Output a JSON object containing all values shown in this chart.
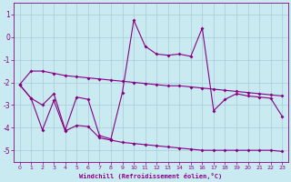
{
  "xlabel": "Windchill (Refroidissement éolien,°C)",
  "background_color": "#c8eaf0",
  "grid_color": "#a8ccd8",
  "line_color": "#880088",
  "xlim": [
    -0.5,
    23.5
  ],
  "ylim": [
    -5.5,
    1.5
  ],
  "xticks": [
    0,
    1,
    2,
    3,
    4,
    5,
    6,
    7,
    8,
    9,
    10,
    11,
    12,
    13,
    14,
    15,
    16,
    17,
    18,
    19,
    20,
    21,
    22,
    23
  ],
  "yticks": [
    1,
    0,
    -1,
    -2,
    -3,
    -4,
    -5
  ],
  "line1_x": [
    0,
    1,
    2,
    3,
    4,
    5,
    6,
    7,
    8,
    9,
    10,
    11,
    12,
    13,
    14,
    15,
    16,
    17,
    18,
    19,
    20,
    21,
    22,
    23
  ],
  "line1_y": [
    -2.1,
    -1.5,
    -1.5,
    -1.6,
    -1.7,
    -1.75,
    -1.8,
    -1.85,
    -1.9,
    -1.95,
    -2.0,
    -2.05,
    -2.1,
    -2.15,
    -2.15,
    -2.2,
    -2.25,
    -2.3,
    -2.35,
    -2.4,
    -2.45,
    -2.5,
    -2.55,
    -2.6
  ],
  "line2_x": [
    0,
    1,
    2,
    3,
    4,
    5,
    6,
    7,
    8,
    9,
    10,
    11,
    12,
    13,
    14,
    15,
    16,
    17,
    18,
    19,
    20,
    21,
    22,
    23
  ],
  "line2_y": [
    -2.1,
    -2.7,
    -3.0,
    -2.5,
    -4.1,
    -2.65,
    -2.75,
    -4.35,
    -4.5,
    -2.45,
    0.75,
    -0.4,
    -0.75,
    -0.8,
    -0.75,
    -0.85,
    0.4,
    -3.25,
    -2.75,
    -2.5,
    -2.6,
    -2.65,
    -2.7,
    -3.5
  ],
  "line3_x": [
    0,
    1,
    2,
    3,
    4,
    5,
    6,
    7,
    8,
    9,
    10,
    11,
    12,
    13,
    14,
    15,
    16,
    17,
    18,
    19,
    20,
    21,
    22,
    23
  ],
  "line3_y": [
    -2.1,
    -2.7,
    -4.1,
    -2.8,
    -4.15,
    -3.9,
    -3.95,
    -4.45,
    -4.55,
    -4.65,
    -4.7,
    -4.75,
    -4.8,
    -4.85,
    -4.9,
    -4.95,
    -5.0,
    -5.0,
    -5.0,
    -5.0,
    -5.0,
    -5.0,
    -5.0,
    -5.05
  ]
}
